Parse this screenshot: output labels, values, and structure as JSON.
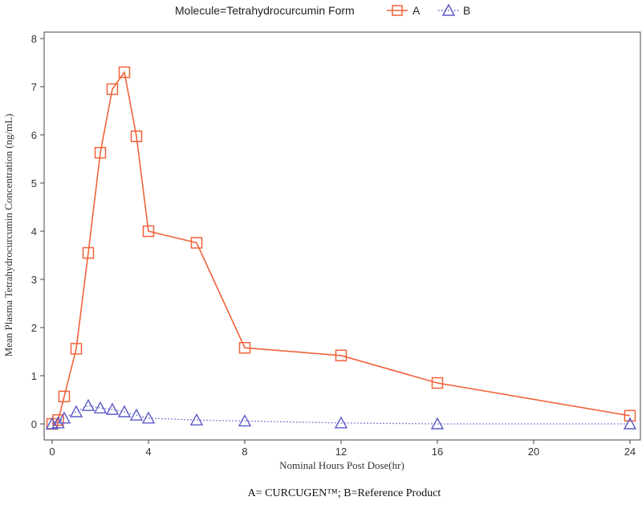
{
  "chart_data": {
    "type": "line",
    "legend": {
      "title": "Molecule=Tetrahydrocurcumin Form",
      "placement": "top-center"
    },
    "xlabel": "Nominal Hours Post Dose(hr)",
    "ylabel": "Mean Plasma Tetrahydrocurcumin Concentration (ng/mL)",
    "caption": "A= CURCUGEN™; B=Reference Product",
    "xlim": [
      0,
      24
    ],
    "ylim": [
      0,
      8
    ],
    "xticks": [
      0,
      4,
      8,
      12,
      16,
      20,
      24
    ],
    "yticks": [
      0,
      1,
      2,
      3,
      4,
      5,
      6,
      7,
      8
    ],
    "grid": false,
    "series": [
      {
        "name": "A",
        "color": "#f2623a",
        "marker": "square",
        "line": "solid",
        "x": [
          0,
          0.25,
          0.5,
          1,
          1.5,
          2,
          2.5,
          3,
          3.5,
          4,
          6,
          8,
          12,
          16,
          24
        ],
        "y": [
          0,
          0.08,
          0.57,
          1.56,
          3.55,
          5.63,
          6.95,
          7.3,
          5.97,
          4.0,
          3.76,
          1.58,
          1.42,
          0.85,
          0.17
        ]
      },
      {
        "name": "B",
        "color": "#5b5bc8",
        "marker": "triangle",
        "line": "dotted",
        "x": [
          0,
          0.25,
          0.5,
          1,
          1.5,
          2,
          2.5,
          3,
          3.5,
          4,
          6,
          8,
          12,
          16,
          24
        ],
        "y": [
          0,
          0.02,
          0.12,
          0.25,
          0.38,
          0.33,
          0.3,
          0.25,
          0.18,
          0.12,
          0.08,
          0.06,
          0.02,
          0.0,
          0.0
        ]
      }
    ]
  }
}
